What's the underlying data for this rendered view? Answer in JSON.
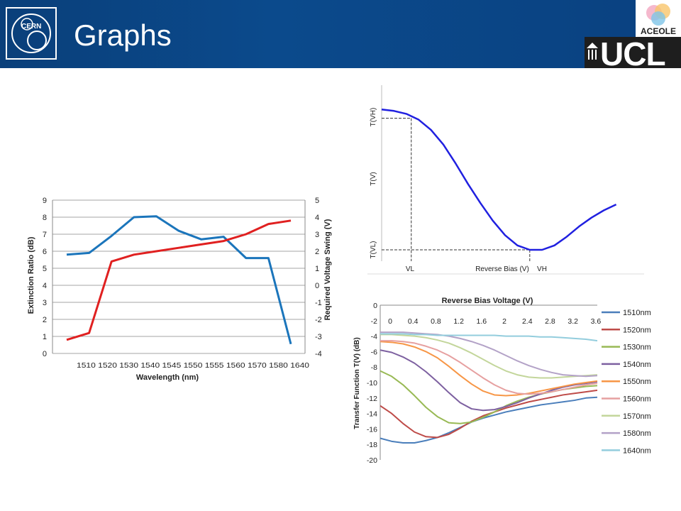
{
  "header": {
    "title": "Graphs",
    "background_color": "#0b4a8c",
    "cern_logo_text": "CERN",
    "aceole_logo_text": "ACEOLE",
    "ucl_logo_text": "UCL"
  },
  "chart_data": [
    {
      "type": "line",
      "xlabel": "Wavelength (nm)",
      "ylabel": "Extinction Ratio (dB)",
      "y2label": "Required Voltage Swing (V)",
      "xticks": [
        "1510",
        "1520",
        "1530",
        "1540",
        "1545",
        "1550",
        "1555",
        "1560",
        "1570",
        "1580",
        "1640"
      ],
      "xticks_display": "1510 1520 1530 1540 1545 1550 1555 1560 1570 1580 1640",
      "ylim": [
        0,
        9
      ],
      "y2lim": [
        -4,
        5
      ],
      "yticks": [
        "0",
        "1",
        "2",
        "3",
        "4",
        "5",
        "6",
        "7",
        "8",
        "9"
      ],
      "y2ticks": [
        "-4",
        "-3",
        "-2",
        "-1",
        "0",
        "1",
        "2",
        "3",
        "4",
        "5"
      ],
      "grid": "horizontal",
      "series": [
        {
          "axis": "left",
          "color": "#1b75bb",
          "values": [
            5.8,
            5.9,
            6.9,
            8.0,
            8.05,
            7.2,
            6.7,
            6.85,
            5.6,
            5.6,
            0.55
          ]
        },
        {
          "axis": "right",
          "color": "#e02020",
          "values": [
            -3.2,
            -2.8,
            1.4,
            1.8,
            2.0,
            2.2,
            2.4,
            2.6,
            3.0,
            3.6,
            3.8
          ]
        }
      ]
    },
    {
      "type": "line",
      "xlabel": "Reverse Bias (V)",
      "ylabel": "T(V)",
      "y_tick_labels": [
        "T(VH)",
        "T(V)",
        "T(VL)"
      ],
      "x_tick_labels": [
        "VL",
        "VH"
      ],
      "color": "#2020e0",
      "curve": [
        [
          0,
          0.96
        ],
        [
          0.05,
          0.95
        ],
        [
          0.1,
          0.93
        ],
        [
          0.15,
          0.89
        ],
        [
          0.2,
          0.82
        ],
        [
          0.25,
          0.72
        ],
        [
          0.3,
          0.59
        ],
        [
          0.35,
          0.45
        ],
        [
          0.4,
          0.32
        ],
        [
          0.45,
          0.2
        ],
        [
          0.5,
          0.1
        ],
        [
          0.55,
          0.03
        ],
        [
          0.6,
          0.0
        ],
        [
          0.65,
          0.0
        ],
        [
          0.7,
          0.03
        ],
        [
          0.75,
          0.09
        ],
        [
          0.8,
          0.16
        ],
        [
          0.85,
          0.22
        ],
        [
          0.9,
          0.27
        ],
        [
          0.95,
          0.31
        ]
      ]
    },
    {
      "type": "line",
      "title": "Reverse Bias Voltage (V)",
      "xlabel": "Reverse Bias Voltage (V)",
      "ylabel": "Transfer Function T(V) (dB)",
      "x": [
        0,
        0.2,
        0.4,
        0.6,
        0.8,
        1.0,
        1.2,
        1.4,
        1.6,
        1.8,
        2.0,
        2.2,
        2.4,
        2.6,
        2.8,
        3.0,
        3.2,
        3.4,
        3.6,
        3.8
      ],
      "xticks": [
        "0",
        "0.4",
        "0.8",
        "1.2",
        "1.6",
        "2",
        "2.4",
        "2.8",
        "3.2",
        "3.6"
      ],
      "xlim": [
        0,
        3.8
      ],
      "ylim": [
        -20,
        0
      ],
      "yticks": [
        "0",
        "-2",
        "-4",
        "-6",
        "-8",
        "-10",
        "-12",
        "-14",
        "-16",
        "-18",
        "-20"
      ],
      "legend": "right",
      "series": [
        {
          "name": "1510nm",
          "color": "#4a7ebb",
          "values": [
            -17.2,
            -17.6,
            -17.8,
            -17.8,
            -17.5,
            -17.1,
            -16.5,
            -15.8,
            -15.1,
            -14.6,
            -14.2,
            -13.8,
            -13.5,
            -13.2,
            -12.9,
            -12.7,
            -12.5,
            -12.3,
            -12.0,
            -11.9
          ]
        },
        {
          "name": "1520nm",
          "color": "#be4b48",
          "values": [
            -13.0,
            -14.0,
            -15.3,
            -16.4,
            -17.0,
            -17.1,
            -16.7,
            -15.9,
            -15.0,
            -14.3,
            -13.8,
            -13.3,
            -12.9,
            -12.5,
            -12.2,
            -11.9,
            -11.6,
            -11.4,
            -11.2,
            -11.0
          ]
        },
        {
          "name": "1530nm",
          "color": "#98b954",
          "values": [
            -8.5,
            -9.2,
            -10.3,
            -11.7,
            -13.2,
            -14.4,
            -15.2,
            -15.3,
            -15.1,
            -14.5,
            -13.8,
            -13.0,
            -12.4,
            -11.9,
            -11.5,
            -11.2,
            -10.9,
            -10.7,
            -10.5,
            -10.4
          ]
        },
        {
          "name": "1540nm",
          "color": "#7d60a0",
          "values": [
            -5.8,
            -6.1,
            -6.7,
            -7.5,
            -8.6,
            -9.9,
            -11.3,
            -12.6,
            -13.4,
            -13.6,
            -13.5,
            -13.1,
            -12.6,
            -12.0,
            -11.5,
            -11.0,
            -10.6,
            -10.3,
            -10.1,
            -9.9
          ]
        },
        {
          "name": "1550nm",
          "color": "#f79646",
          "values": [
            -4.7,
            -4.8,
            -5.0,
            -5.4,
            -6.0,
            -6.8,
            -7.9,
            -9.1,
            -10.2,
            -11.1,
            -11.6,
            -11.7,
            -11.6,
            -11.4,
            -11.1,
            -10.8,
            -10.5,
            -10.2,
            -10.0,
            -9.8
          ]
        },
        {
          "name": "1560nm",
          "color": "#e6a0a0",
          "values": [
            -4.6,
            -4.6,
            -4.7,
            -4.9,
            -5.3,
            -5.8,
            -6.5,
            -7.4,
            -8.4,
            -9.4,
            -10.3,
            -11.0,
            -11.4,
            -11.5,
            -11.4,
            -11.2,
            -10.9,
            -10.6,
            -10.3,
            -10.1
          ]
        },
        {
          "name": "1570nm",
          "color": "#c3d69b",
          "values": [
            -3.8,
            -3.8,
            -3.9,
            -4.0,
            -4.2,
            -4.5,
            -4.9,
            -5.5,
            -6.2,
            -7.0,
            -7.8,
            -8.5,
            -9.0,
            -9.3,
            -9.4,
            -9.4,
            -9.3,
            -9.2,
            -9.1,
            -9.0
          ]
        },
        {
          "name": "1580nm",
          "color": "#b3a2c7",
          "values": [
            -3.5,
            -3.5,
            -3.5,
            -3.6,
            -3.7,
            -3.8,
            -4.0,
            -4.3,
            -4.7,
            -5.2,
            -5.8,
            -6.5,
            -7.2,
            -7.8,
            -8.3,
            -8.7,
            -9.0,
            -9.1,
            -9.2,
            -9.1
          ]
        },
        {
          "name": "1640nm",
          "color": "#93cddd",
          "values": [
            -3.7,
            -3.7,
            -3.7,
            -3.8,
            -3.8,
            -3.9,
            -3.9,
            -3.9,
            -3.9,
            -3.9,
            -3.9,
            -4.0,
            -4.0,
            -4.0,
            -4.1,
            -4.1,
            -4.2,
            -4.3,
            -4.4,
            -4.6
          ]
        }
      ]
    }
  ]
}
